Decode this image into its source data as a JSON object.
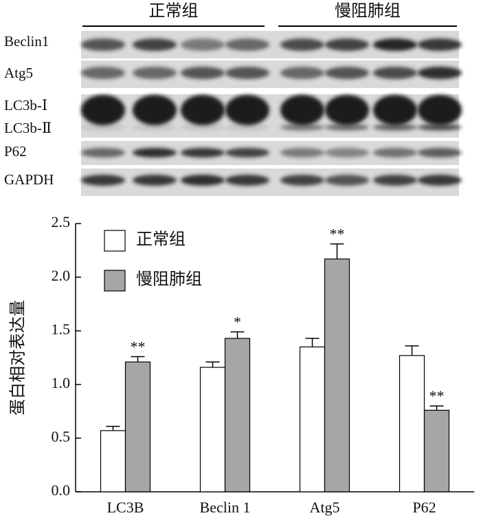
{
  "blot": {
    "groups": [
      "正常组",
      "慢阻肺组"
    ],
    "rows": [
      "Beclin1",
      "Atg5",
      "LC3b-Ⅰ",
      "LC3b-Ⅱ",
      "P62",
      "GAPDH"
    ]
  },
  "chart_data": {
    "type": "bar",
    "ylabel": "蛋白相对表达量",
    "categories": [
      "LC3B",
      "Beclin 1",
      "Atg5",
      "P62"
    ],
    "series": [
      {
        "name": "正常组",
        "color": "#ffffff",
        "values": [
          0.57,
          1.16,
          1.35,
          1.27
        ],
        "errors": [
          0.04,
          0.05,
          0.08,
          0.09
        ]
      },
      {
        "name": "慢阻肺组",
        "color": "#a6a6a6",
        "values": [
          1.21,
          1.43,
          2.17,
          0.76
        ],
        "errors": [
          0.05,
          0.06,
          0.14,
          0.04
        ],
        "annotations": [
          "**",
          "*",
          "**",
          "**"
        ]
      }
    ],
    "ylim": [
      0,
      2.5
    ],
    "yticks": [
      {
        "value": 0,
        "label": "0.0"
      },
      {
        "value": 0.5,
        "label": "0.5"
      },
      {
        "value": 1,
        "label": "1.0"
      },
      {
        "value": 1.5,
        "label": "1.5"
      },
      {
        "value": 2,
        "label": "2.0"
      },
      {
        "value": 2.5,
        "label": "2.5"
      }
    ],
    "legend": "upper left"
  }
}
